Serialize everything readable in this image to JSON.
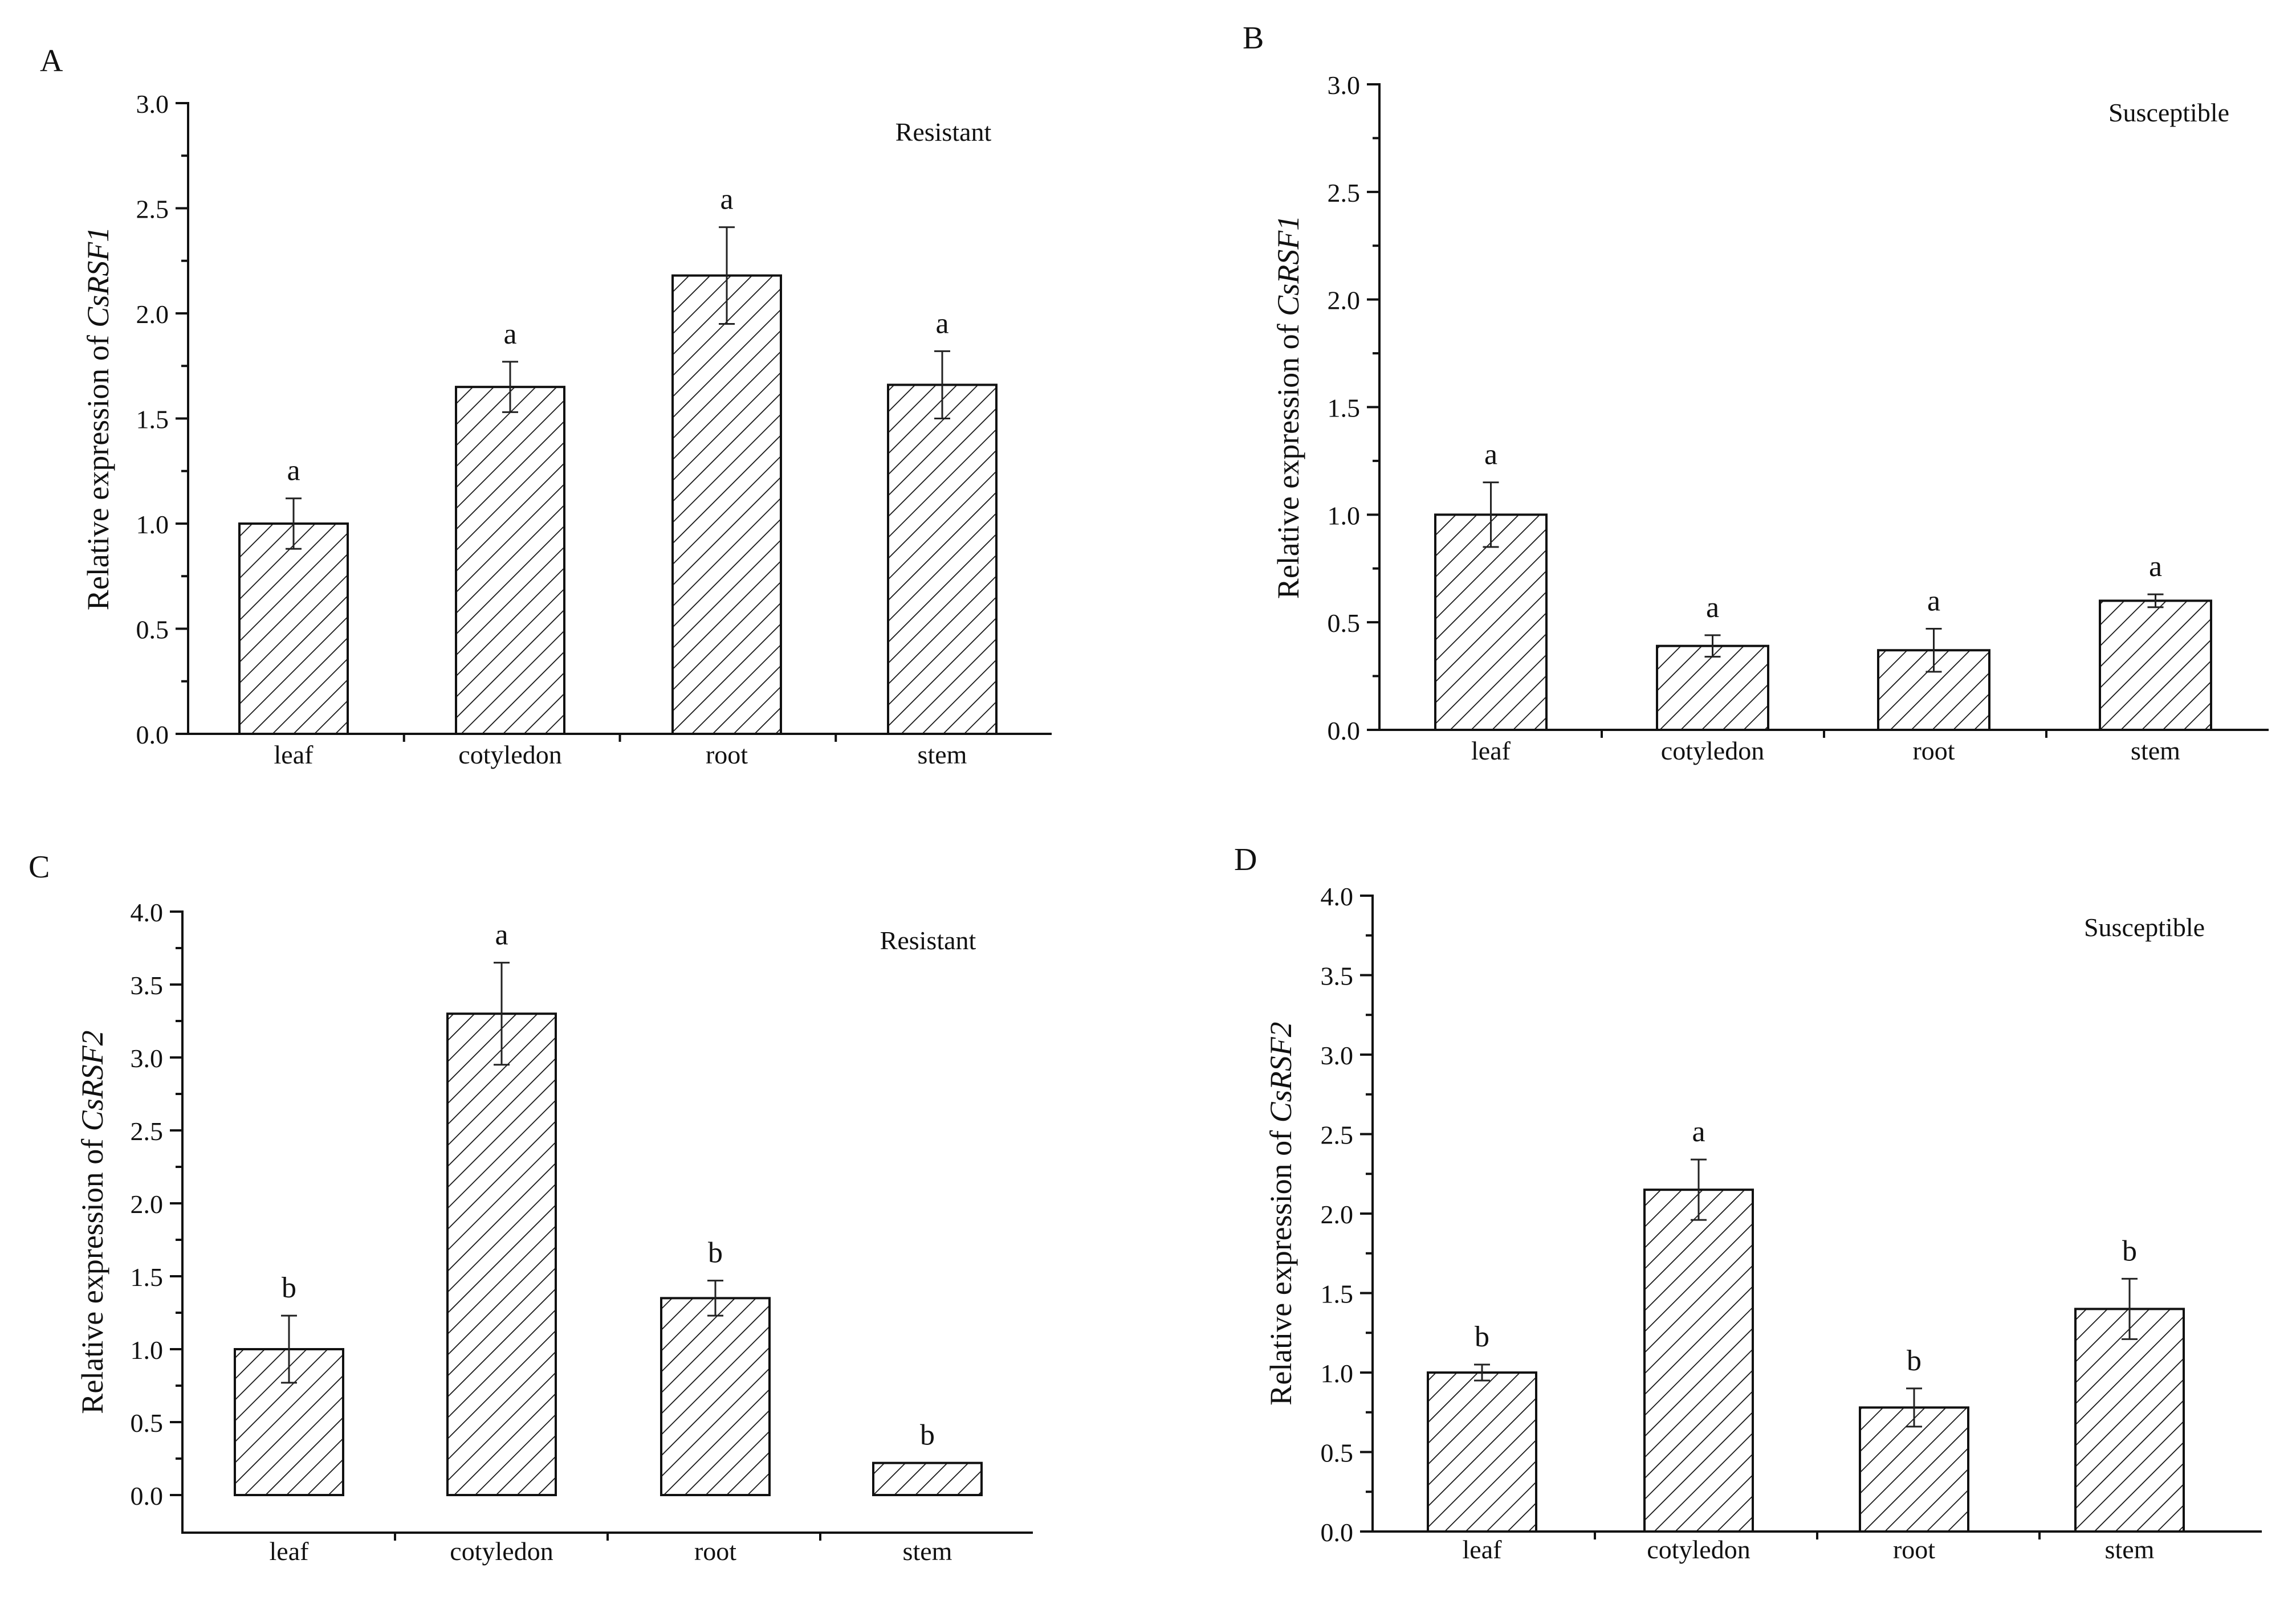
{
  "figure": {
    "description": "Relative expression of CsRSF1 and CsRSF2 in resistant and susceptible tissues"
  },
  "chart_data": [
    {
      "type": "bar",
      "panel_label": "A",
      "annotation": "Resistant",
      "ylabel_prefix": "Relative expression of ",
      "ylabel_gene": "CsRSF1",
      "categories": [
        "leaf",
        "cotyledon",
        "root",
        "stem"
      ],
      "values": [
        1.0,
        1.65,
        2.18,
        1.66
      ],
      "errors": [
        0.12,
        0.12,
        0.23,
        0.16
      ],
      "significance": [
        "a",
        "a",
        "a",
        "a"
      ],
      "ylim": [
        0,
        3.0
      ],
      "yticks": [
        "0.0",
        "0.5",
        "1.0",
        "1.5",
        "2.0",
        "2.5",
        "3.0"
      ],
      "ytick_values": [
        0,
        0.5,
        1.0,
        1.5,
        2.0,
        2.5,
        3.0
      ]
    },
    {
      "type": "bar",
      "panel_label": "B",
      "annotation": "Susceptible",
      "ylabel_prefix": "Relative expression of ",
      "ylabel_gene": "CsRSF1",
      "categories": [
        "leaf",
        "cotyledon",
        "root",
        "stem"
      ],
      "values": [
        1.0,
        0.39,
        0.37,
        0.6
      ],
      "errors": [
        0.15,
        0.05,
        0.1,
        0.03
      ],
      "significance": [
        "a",
        "a",
        "a",
        "a"
      ],
      "ylim": [
        0,
        3.0
      ],
      "yticks": [
        "0.0",
        "0.5",
        "1.0",
        "1.5",
        "2.0",
        "2.5",
        "3.0"
      ],
      "ytick_values": [
        0,
        0.5,
        1.0,
        1.5,
        2.0,
        2.5,
        3.0
      ]
    },
    {
      "type": "bar",
      "panel_label": "C",
      "annotation": "Resistant",
      "ylabel_prefix": "Relative expression of ",
      "ylabel_gene": "CsRSF2",
      "categories": [
        "leaf",
        "cotyledon",
        "root",
        "stem"
      ],
      "values": [
        1.0,
        3.3,
        1.35,
        0.22
      ],
      "errors": [
        0.23,
        0.35,
        0.12,
        0.0
      ],
      "significance": [
        "b",
        "a",
        "b",
        "b"
      ],
      "ylim": [
        -0.25,
        4.0
      ],
      "yticks": [
        "0.0",
        "0.5",
        "1.0",
        "1.5",
        "2.0",
        "2.5",
        "3.0",
        "3.5",
        "4.0"
      ],
      "ytick_values": [
        0,
        0.5,
        1.0,
        1.5,
        2.0,
        2.5,
        3.0,
        3.5,
        4.0
      ]
    },
    {
      "type": "bar",
      "panel_label": "D",
      "annotation": "Susceptible",
      "ylabel_prefix": "Relative expression of ",
      "ylabel_gene": "CsRSF2",
      "categories": [
        "leaf",
        "cotyledon",
        "root",
        "stem"
      ],
      "values": [
        1.0,
        2.15,
        0.78,
        1.4
      ],
      "errors": [
        0.05,
        0.19,
        0.12,
        0.19
      ],
      "significance": [
        "b",
        "a",
        "b",
        "b"
      ],
      "ylim": [
        0,
        4.0
      ],
      "yticks": [
        "0.0",
        "0.5",
        "1.0",
        "1.5",
        "2.0",
        "2.5",
        "3.0",
        "3.5",
        "4.0"
      ],
      "ytick_values": [
        0,
        0.5,
        1.0,
        1.5,
        2.0,
        2.5,
        3.0,
        3.5,
        4.0
      ]
    }
  ]
}
